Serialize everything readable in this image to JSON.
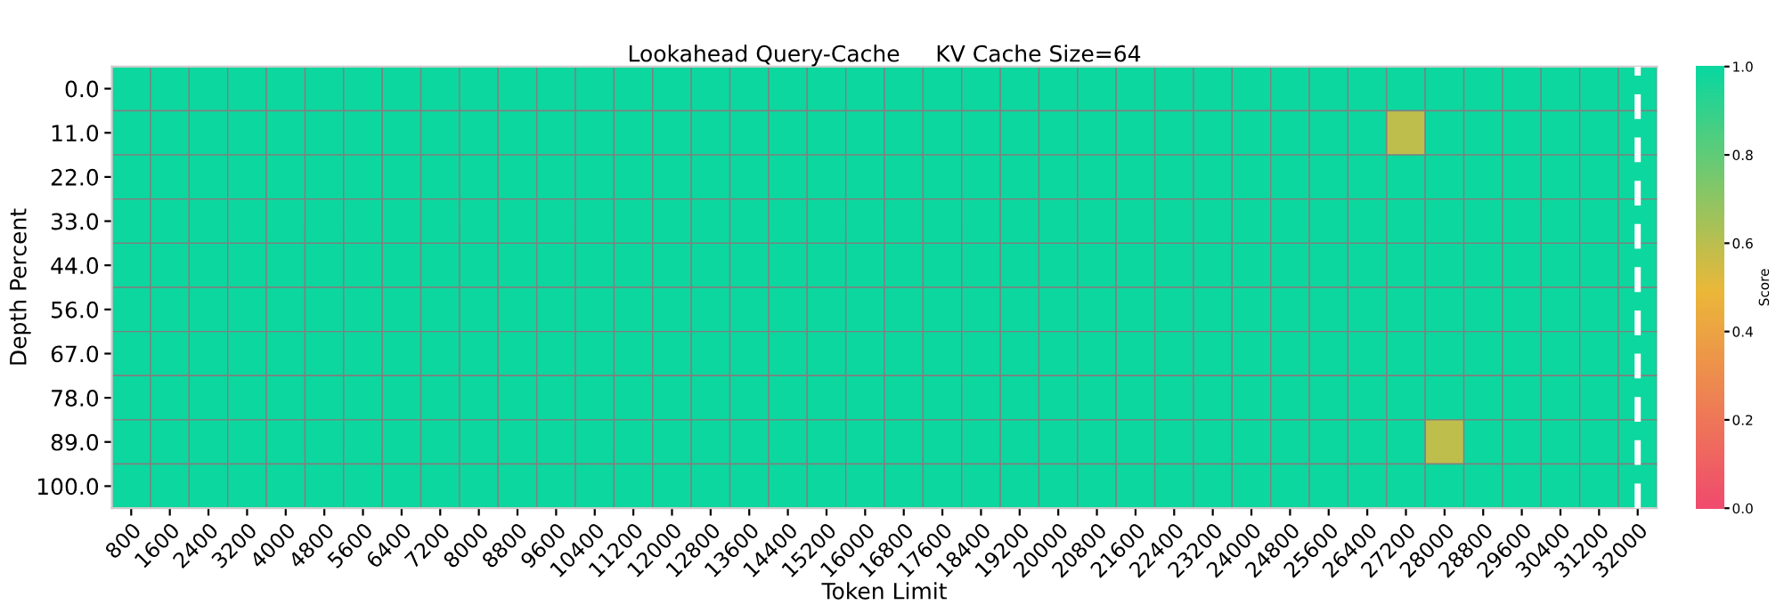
{
  "chart_data": {
    "type": "heatmap",
    "title": "Lookahead Query-Cache     KV Cache Size=64",
    "xlabel": "Token Limit",
    "ylabel": "Depth Percent",
    "clabel": "Score",
    "categories": [
      "800",
      "1600",
      "2400",
      "3200",
      "4000",
      "4800",
      "5600",
      "6400",
      "7200",
      "8000",
      "8800",
      "9600",
      "10400",
      "11200",
      "12000",
      "12800",
      "13600",
      "14400",
      "15200",
      "16000",
      "16800",
      "17600",
      "18400",
      "19200",
      "20000",
      "20800",
      "21600",
      "22400",
      "23200",
      "24000",
      "24800",
      "25600",
      "26400",
      "27200",
      "28000",
      "28800",
      "29600",
      "30400",
      "31200",
      "32000"
    ],
    "y_categories": [
      "0.0",
      "11.0",
      "22.0",
      "33.0",
      "44.0",
      "56.0",
      "67.0",
      "78.0",
      "89.0",
      "100.0"
    ],
    "cells": [
      [
        1,
        1,
        1,
        1,
        1,
        1,
        1,
        1,
        1,
        1,
        1,
        1,
        1,
        1,
        1,
        1,
        1,
        1,
        1,
        1,
        1,
        1,
        1,
        1,
        1,
        1,
        1,
        1,
        1,
        1,
        1,
        1,
        1,
        1,
        1,
        1,
        1,
        1,
        1,
        1
      ],
      [
        1,
        1,
        1,
        1,
        1,
        1,
        1,
        1,
        1,
        1,
        1,
        1,
        1,
        1,
        1,
        1,
        1,
        1,
        1,
        1,
        1,
        1,
        1,
        1,
        1,
        1,
        1,
        1,
        1,
        1,
        1,
        1,
        1,
        0.6,
        1,
        1,
        1,
        1,
        1,
        1
      ],
      [
        1,
        1,
        1,
        1,
        1,
        1,
        1,
        1,
        1,
        1,
        1,
        1,
        1,
        1,
        1,
        1,
        1,
        1,
        1,
        1,
        1,
        1,
        1,
        1,
        1,
        1,
        1,
        1,
        1,
        1,
        1,
        1,
        1,
        1,
        1,
        1,
        1,
        1,
        1,
        1
      ],
      [
        1,
        1,
        1,
        1,
        1,
        1,
        1,
        1,
        1,
        1,
        1,
        1,
        1,
        1,
        1,
        1,
        1,
        1,
        1,
        1,
        1,
        1,
        1,
        1,
        1,
        1,
        1,
        1,
        1,
        1,
        1,
        1,
        1,
        1,
        1,
        1,
        1,
        1,
        1,
        1
      ],
      [
        1,
        1,
        1,
        1,
        1,
        1,
        1,
        1,
        1,
        1,
        1,
        1,
        1,
        1,
        1,
        1,
        1,
        1,
        1,
        1,
        1,
        1,
        1,
        1,
        1,
        1,
        1,
        1,
        1,
        1,
        1,
        1,
        1,
        1,
        1,
        1,
        1,
        1,
        1,
        1
      ],
      [
        1,
        1,
        1,
        1,
        1,
        1,
        1,
        1,
        1,
        1,
        1,
        1,
        1,
        1,
        1,
        1,
        1,
        1,
        1,
        1,
        1,
        1,
        1,
        1,
        1,
        1,
        1,
        1,
        1,
        1,
        1,
        1,
        1,
        1,
        1,
        1,
        1,
        1,
        1,
        1
      ],
      [
        1,
        1,
        1,
        1,
        1,
        1,
        1,
        1,
        1,
        1,
        1,
        1,
        1,
        1,
        1,
        1,
        1,
        1,
        1,
        1,
        1,
        1,
        1,
        1,
        1,
        1,
        1,
        1,
        1,
        1,
        1,
        1,
        1,
        1,
        1,
        1,
        1,
        1,
        1,
        1
      ],
      [
        1,
        1,
        1,
        1,
        1,
        1,
        1,
        1,
        1,
        1,
        1,
        1,
        1,
        1,
        1,
        1,
        1,
        1,
        1,
        1,
        1,
        1,
        1,
        1,
        1,
        1,
        1,
        1,
        1,
        1,
        1,
        1,
        1,
        1,
        1,
        1,
        1,
        1,
        1,
        1
      ],
      [
        1,
        1,
        1,
        1,
        1,
        1,
        1,
        1,
        1,
        1,
        1,
        1,
        1,
        1,
        1,
        1,
        1,
        1,
        1,
        1,
        1,
        1,
        1,
        1,
        1,
        1,
        1,
        1,
        1,
        1,
        1,
        1,
        1,
        1,
        0.6,
        1,
        1,
        1,
        1,
        1
      ],
      [
        1,
        1,
        1,
        1,
        1,
        1,
        1,
        1,
        1,
        1,
        1,
        1,
        1,
        1,
        1,
        1,
        1,
        1,
        1,
        1,
        1,
        1,
        1,
        1,
        1,
        1,
        1,
        1,
        1,
        1,
        1,
        1,
        1,
        1,
        1,
        1,
        1,
        1,
        1,
        1
      ]
    ],
    "colors": [
      "#f0496e",
      "#ebb839",
      "#0cd79f"
    ],
    "clim": [
      0,
      1
    ],
    "cticks": [
      {
        "value": 0,
        "label": "0.0"
      },
      {
        "value": 0.2,
        "label": "0.2"
      },
      {
        "value": 0.4,
        "label": "0.4"
      },
      {
        "value": 0.6,
        "label": "0.6"
      },
      {
        "value": 0.8,
        "label": "0.8"
      },
      {
        "value": 1,
        "label": "1.0"
      }
    ],
    "ref_lines": [
      {
        "axis": "x",
        "value": "32000",
        "color": "#ffffff",
        "line_style": "dashed"
      }
    ]
  }
}
